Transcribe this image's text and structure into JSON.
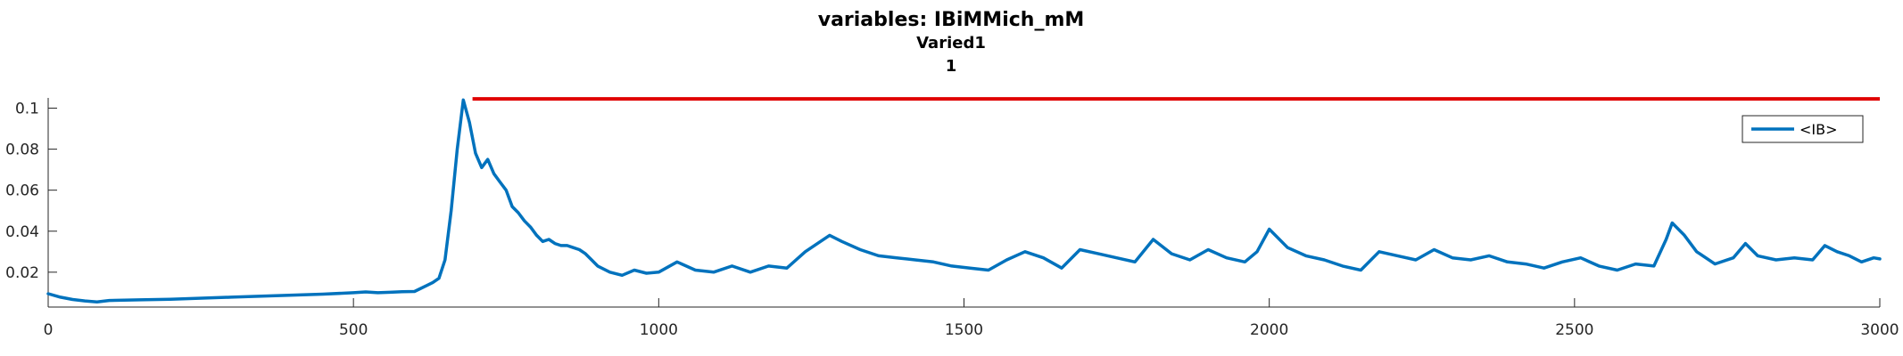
{
  "chart_data": {
    "type": "line",
    "title": "variables: IBiMMich_mM",
    "subtitle": "Varied1",
    "subtitle2": "1",
    "xlim": [
      0,
      3000
    ],
    "ylim": [
      0.003,
      0.105
    ],
    "xticks": [
      0,
      500,
      1000,
      1500,
      2000,
      2500,
      3000
    ],
    "xtick_labels": [
      "0",
      "500",
      "1000",
      "1500",
      "2000",
      "2500",
      "3000"
    ],
    "yticks": [
      0.02,
      0.04,
      0.06,
      0.08,
      0.1
    ],
    "ytick_labels": [
      "0.02",
      "0.04",
      "0.06",
      "0.08",
      "0.1"
    ],
    "grid": false,
    "legend_placement": "top-right",
    "series": [
      {
        "name": "<IB>",
        "color": "#0072BD",
        "x": [
          0,
          20,
          40,
          60,
          80,
          100,
          150,
          200,
          300,
          400,
          450,
          500,
          520,
          540,
          560,
          580,
          600,
          620,
          630,
          640,
          650,
          660,
          670,
          680,
          690,
          700,
          710,
          720,
          730,
          740,
          750,
          760,
          770,
          780,
          790,
          800,
          810,
          820,
          830,
          840,
          850,
          860,
          870,
          880,
          890,
          900,
          920,
          940,
          960,
          980,
          1000,
          1030,
          1060,
          1090,
          1120,
          1150,
          1180,
          1210,
          1240,
          1260,
          1280,
          1300,
          1330,
          1360,
          1390,
          1420,
          1450,
          1480,
          1510,
          1540,
          1570,
          1600,
          1630,
          1660,
          1690,
          1720,
          1750,
          1780,
          1810,
          1840,
          1870,
          1900,
          1930,
          1960,
          1980,
          2000,
          2030,
          2060,
          2090,
          2120,
          2150,
          2180,
          2210,
          2240,
          2270,
          2300,
          2330,
          2360,
          2390,
          2420,
          2450,
          2480,
          2510,
          2540,
          2570,
          2600,
          2630,
          2650,
          2660,
          2680,
          2700,
          2730,
          2760,
          2780,
          2800,
          2830,
          2860,
          2890,
          2910,
          2930,
          2950,
          2970,
          2990,
          3000
        ],
        "y": [
          0.0095,
          0.0078,
          0.0067,
          0.006,
          0.0055,
          0.0062,
          0.0065,
          0.0068,
          0.0078,
          0.0088,
          0.0093,
          0.01,
          0.0104,
          0.01,
          0.0102,
          0.0105,
          0.0106,
          0.0135,
          0.015,
          0.017,
          0.026,
          0.05,
          0.08,
          0.104,
          0.093,
          0.078,
          0.071,
          0.075,
          0.068,
          0.064,
          0.06,
          0.052,
          0.049,
          0.045,
          0.042,
          0.038,
          0.035,
          0.036,
          0.034,
          0.033,
          0.033,
          0.032,
          0.031,
          0.029,
          0.026,
          0.023,
          0.02,
          0.0185,
          0.021,
          0.0195,
          0.02,
          0.025,
          0.021,
          0.02,
          0.023,
          0.02,
          0.023,
          0.022,
          0.03,
          0.034,
          0.038,
          0.035,
          0.031,
          0.028,
          0.027,
          0.026,
          0.025,
          0.023,
          0.022,
          0.021,
          0.026,
          0.03,
          0.027,
          0.022,
          0.031,
          0.029,
          0.027,
          0.025,
          0.036,
          0.029,
          0.026,
          0.031,
          0.027,
          0.025,
          0.03,
          0.041,
          0.032,
          0.028,
          0.026,
          0.023,
          0.021,
          0.03,
          0.028,
          0.026,
          0.031,
          0.027,
          0.026,
          0.028,
          0.025,
          0.024,
          0.022,
          0.025,
          0.027,
          0.023,
          0.021,
          0.024,
          0.023,
          0.036,
          0.044,
          0.038,
          0.03,
          0.024,
          0.027,
          0.034,
          0.028,
          0.026,
          0.027,
          0.026,
          0.033,
          0.03,
          0.028,
          0.025,
          0.027,
          0.0265
        ]
      }
    ],
    "reference_line": {
      "color": "#E00000",
      "x": [
        695,
        3000
      ],
      "y": 0.1045
    }
  }
}
